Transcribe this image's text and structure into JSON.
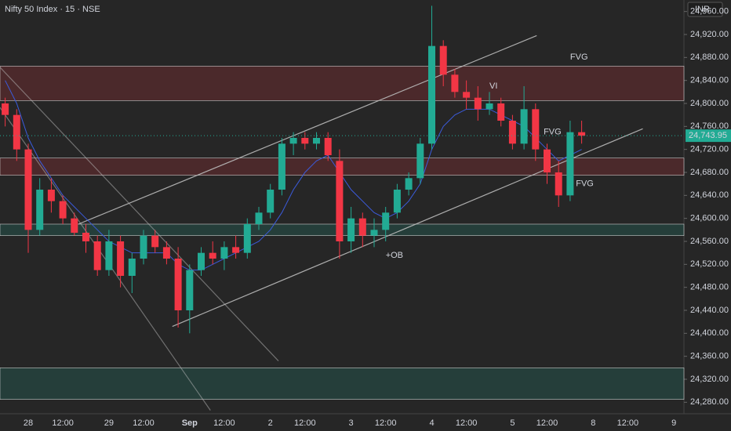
{
  "chart_data": {
    "type": "candlestick",
    "title": "Nifty 50 Index · 15 · NSE",
    "currency": "INR",
    "categories": [
      null,
      null,
      "28",
      null,
      null,
      "12:00",
      null,
      null,
      null,
      "29",
      null,
      null,
      "12:00",
      null,
      null,
      null,
      "Sep",
      null,
      null,
      "12:00",
      null,
      null,
      null,
      "2",
      null,
      null,
      "12:00",
      null,
      null,
      null,
      "3",
      null,
      null,
      "12:00",
      null,
      null,
      null,
      "4",
      null,
      null,
      "12:00",
      null,
      null,
      null,
      "5",
      null,
      null,
      "12:00",
      null,
      null,
      null,
      "8",
      null,
      null,
      "12:00",
      null,
      null,
      null,
      "9"
    ],
    "open": [
      24800,
      24780,
      24720,
      24580,
      24650,
      24630,
      24600,
      24575,
      24560,
      24510,
      24560,
      24500,
      24530,
      24570,
      24550,
      24530,
      24440,
      24510,
      24540,
      24530,
      24550,
      24540,
      24590,
      24610,
      24650,
      24730,
      24740,
      24730,
      24740,
      24700,
      24560,
      24600,
      24570,
      24580,
      24610,
      24650,
      24670,
      24730,
      24900,
      24850,
      24820,
      24810,
      24790,
      24800,
      24770,
      24730,
      24790,
      24720,
      24680,
      24640,
      24750,
      null,
      null,
      null,
      null,
      null,
      null,
      null,
      null
    ],
    "high": [
      24810,
      24790,
      24730,
      24670,
      24670,
      24640,
      24610,
      24590,
      24570,
      24580,
      24570,
      24540,
      24580,
      24580,
      24560,
      24550,
      24520,
      24550,
      24560,
      24560,
      24570,
      24600,
      24620,
      24660,
      24740,
      24750,
      24750,
      24750,
      24750,
      24720,
      24620,
      24610,
      24600,
      24620,
      24660,
      24680,
      24740,
      24970,
      24910,
      24860,
      24840,
      24830,
      24820,
      24810,
      24780,
      24830,
      24800,
      24730,
      24700,
      24770,
      24770,
      null,
      null,
      null,
      null,
      null,
      null,
      null,
      null
    ],
    "low": [
      24760,
      24700,
      24540,
      24570,
      24610,
      24590,
      24570,
      24540,
      24500,
      24500,
      24480,
      24470,
      24520,
      24540,
      24520,
      24410,
      24400,
      24500,
      24520,
      24510,
      24530,
      24530,
      24580,
      24600,
      24640,
      24710,
      24720,
      24720,
      24700,
      24530,
      24540,
      24550,
      24550,
      24560,
      24600,
      24640,
      24660,
      24720,
      24830,
      24810,
      24790,
      24770,
      24780,
      24760,
      24720,
      24720,
      24700,
      24660,
      24620,
      24630,
      24730,
      null,
      null,
      null,
      null,
      null,
      null,
      null,
      null
    ],
    "close": [
      24780,
      24720,
      24580,
      24650,
      24630,
      24600,
      24575,
      24560,
      24510,
      24560,
      24500,
      24530,
      24570,
      24550,
      24530,
      24440,
      24510,
      24540,
      24530,
      24550,
      24540,
      24590,
      24610,
      24650,
      24730,
      24740,
      24730,
      24740,
      24710,
      24560,
      24600,
      24570,
      24580,
      24610,
      24650,
      24670,
      24730,
      24900,
      24850,
      24820,
      24810,
      24790,
      24800,
      24770,
      24730,
      24790,
      24720,
      24680,
      24640,
      24750,
      24743.95,
      null,
      null,
      null,
      null,
      null,
      null,
      null,
      null
    ],
    "ma": [
      24840,
      24800,
      24740,
      24700,
      24670,
      24640,
      24620,
      24600,
      24580,
      24560,
      24550,
      24540,
      24540,
      24540,
      24540,
      24520,
      24510,
      24510,
      24520,
      24530,
      24540,
      24550,
      24560,
      24580,
      24610,
      24650,
      24680,
      24700,
      24710,
      24680,
      24650,
      24630,
      24610,
      24600,
      24610,
      24630,
      24660,
      24720,
      24760,
      24780,
      24790,
      24790,
      24790,
      24780,
      24770,
      24760,
      24740,
      24720,
      24700,
      24710,
      24720,
      null,
      null,
      null,
      null,
      null,
      null,
      null,
      null
    ],
    "ma_color": "#3b5bdb",
    "up_color": "#22ab94",
    "down_color": "#f23645",
    "ylim": [
      24260,
      24980
    ],
    "yticks": [
      {
        "value": 24960,
        "label": "24,960.00"
      },
      {
        "value": 24920,
        "label": "24,920.00"
      },
      {
        "value": 24880,
        "label": "24,880.00"
      },
      {
        "value": 24840,
        "label": "24,840.00"
      },
      {
        "value": 24800,
        "label": "24,800.00"
      },
      {
        "value": 24760,
        "label": "24,760.00"
      },
      {
        "value": 24720,
        "label": "24,720.00"
      },
      {
        "value": 24680,
        "label": "24,680.00"
      },
      {
        "value": 24640,
        "label": "24,640.00"
      },
      {
        "value": 24600,
        "label": "24,600.00"
      },
      {
        "value": 24560,
        "label": "24,560.00"
      },
      {
        "value": 24520,
        "label": "24,520.00"
      },
      {
        "value": 24480,
        "label": "24,480.00"
      },
      {
        "value": 24440,
        "label": "24,440.00"
      },
      {
        "value": 24400,
        "label": "24,400.00"
      },
      {
        "value": 24360,
        "label": "24,360.00"
      },
      {
        "value": 24320,
        "label": "24,320.00"
      },
      {
        "value": 24280,
        "label": "24,280.00"
      }
    ],
    "last_price": {
      "value": 24743.95,
      "label": "24,743.95"
    },
    "zones": [
      {
        "from": 24805,
        "to": 24865,
        "color": "#f23645"
      },
      {
        "from": 24675,
        "to": 24705,
        "color": "#f23645"
      },
      {
        "from": 24570,
        "to": 24590,
        "color": "#22ab94"
      },
      {
        "from": 24285,
        "to": 24340,
        "color": "#22ab94"
      }
    ],
    "trend_lines": [
      {
        "x": [
          6.35,
          46.1
        ],
        "y": [
          24590,
          24918
        ]
      },
      {
        "x": [
          14.5,
          55.3
        ],
        "y": [
          24412,
          24756
        ]
      },
      {
        "x": [
          -0.45,
          23.7
        ],
        "y": [
          24863,
          24352
        ]
      },
      {
        "x": [
          -0.45,
          17.8
        ],
        "y": [
          24793,
          24266
        ]
      }
    ],
    "annotations": [
      {
        "text": "VI",
        "x": 42,
        "y": 24830
      },
      {
        "text": "FVG",
        "x": 46.7,
        "y": 24750
      },
      {
        "text": "FVG",
        "x": 49,
        "y": 24880
      },
      {
        "text": "FVG",
        "x": 49.5,
        "y": 24660
      },
      {
        "text": "+OB",
        "x": 33,
        "y": 24535
      }
    ]
  }
}
